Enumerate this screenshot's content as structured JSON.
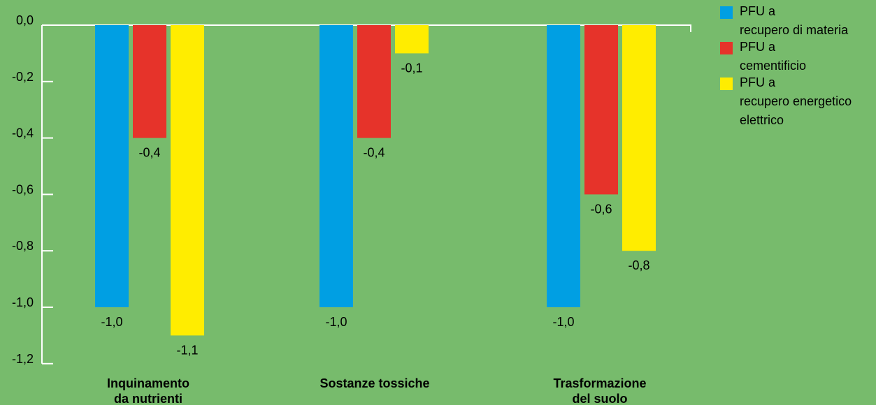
{
  "chart_data": {
    "type": "bar",
    "categories": [
      [
        "Inquinamento",
        "da nutrienti"
      ],
      [
        "Sostanze tossiche"
      ],
      [
        "Trasformazione",
        "del suolo"
      ]
    ],
    "series": [
      {
        "name": "PFU a recupero di materia",
        "color": "#009fe3",
        "values": [
          -1.0,
          -1.0,
          -1.0
        ],
        "labels": [
          "-1,0",
          "-1,0",
          "-1,0"
        ]
      },
      {
        "name": "PFU a cementificio",
        "color": "#e6332a",
        "values": [
          -0.4,
          -0.4,
          -0.6
        ],
        "labels": [
          "-0,4",
          "-0,4",
          "-0,6"
        ]
      },
      {
        "name": "PFU a recupero energetico elettrico",
        "color": "#ffed00",
        "values": [
          -1.1,
          -0.1,
          -0.8
        ],
        "labels": [
          "-1,1",
          "-0,1",
          "-0,8"
        ]
      }
    ],
    "y_ticks": [
      0.0,
      -0.2,
      -0.4,
      -0.6,
      -0.8,
      -1.0,
      -1.2
    ],
    "y_tick_labels": [
      "0,0",
      "-0,2",
      "-0,4",
      "-0,6",
      "-0,8",
      "-1,0",
      "-1,2"
    ],
    "ylim": [
      -1.2,
      0.0
    ],
    "grid": false,
    "legend_position": "top-right"
  },
  "legend": [
    {
      "lines": [
        "PFU a",
        "recupero di materia"
      ],
      "color": "#009fe3"
    },
    {
      "lines": [
        "PFU a",
        "cementificio"
      ],
      "color": "#e6332a"
    },
    {
      "lines": [
        "PFU a",
        "recupero energetico",
        "elettrico"
      ],
      "color": "#ffed00"
    }
  ]
}
